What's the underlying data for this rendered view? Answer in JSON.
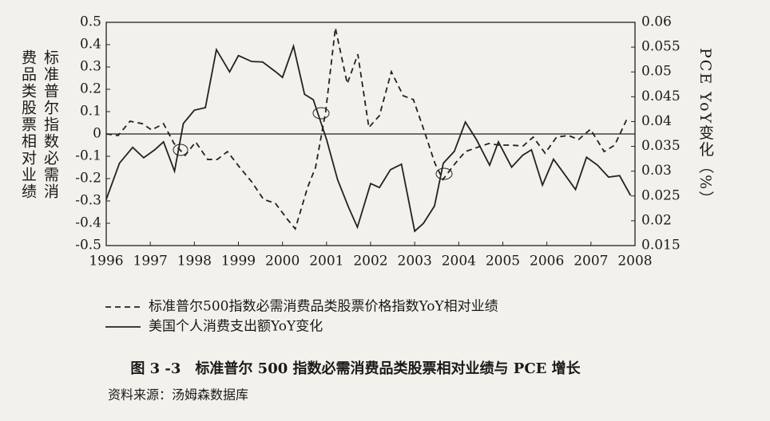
{
  "chart_data": {
    "type": "line",
    "ylabel": [
      "标准普尔指数必需消",
      "费品类股票相对业绩"
    ],
    "y2label": "PCE YoY变化（%）",
    "xlim": [
      1996,
      2008
    ],
    "xticks": [
      1996,
      1997,
      1998,
      1999,
      2000,
      2001,
      2002,
      2003,
      2004,
      2005,
      2006,
      2007,
      2008
    ],
    "ylim": [
      -0.5,
      0.5
    ],
    "yticks": [
      0.5,
      0.4,
      0.3,
      0.2,
      0.1,
      0,
      -0.1,
      -0.2,
      -0.3,
      -0.4,
      -0.5
    ],
    "y2lim": [
      0.015,
      0.06
    ],
    "y2ticks": [
      0.06,
      0.055,
      0.05,
      0.045,
      0.04,
      0.035,
      0.03,
      0.025,
      0.02,
      0.015
    ],
    "series": [
      {
        "name": "标准普尔500指数必需消费品类股票价格指数YoY相对业绩",
        "color": "#222",
        "dash": true,
        "x": [
          1996.0,
          1996.27,
          1996.54,
          1996.82,
          1997.03,
          1997.3,
          1997.54,
          1997.79,
          1998.03,
          1998.3,
          1998.52,
          1998.75,
          1999.03,
          1999.3,
          1999.57,
          1999.84,
          2000.11,
          2000.29,
          2000.57,
          2000.75,
          2000.98,
          2001.2,
          2001.47,
          2001.71,
          2001.96,
          2002.2,
          2002.47,
          2002.74,
          2002.97,
          2003.19,
          2003.46,
          2003.64,
          2003.92,
          2004.15,
          2004.41,
          2004.68,
          2004.91,
          2005.18,
          2005.46,
          2005.69,
          2005.96,
          2006.22,
          2006.49,
          2006.72,
          2006.99,
          2007.3,
          2007.54,
          2007.81
        ],
        "values": [
          0.0,
          -0.007,
          0.057,
          0.046,
          0.018,
          0.046,
          -0.043,
          -0.096,
          -0.036,
          -0.114,
          -0.114,
          -0.079,
          -0.15,
          -0.214,
          -0.293,
          -0.311,
          -0.382,
          -0.425,
          -0.239,
          -0.15,
          0.1,
          0.475,
          0.225,
          0.357,
          0.029,
          0.082,
          0.279,
          0.171,
          0.154,
          0.029,
          -0.132,
          -0.204,
          -0.132,
          -0.079,
          -0.061,
          -0.043,
          -0.05,
          -0.05,
          -0.054,
          -0.014,
          -0.086,
          -0.014,
          -0.007,
          -0.025,
          0.021,
          -0.079,
          -0.05,
          0.064
        ]
      },
      {
        "name": "美国个人消费支出额YoY变化",
        "color": "#222",
        "dash": false,
        "axis": "y2",
        "x": [
          1996.0,
          1996.3,
          1996.6,
          1996.85,
          1997.1,
          1997.3,
          1997.55,
          1997.75,
          1998.0,
          1998.25,
          1998.5,
          1998.8,
          1999.0,
          1999.3,
          1999.55,
          1999.85,
          2000.0,
          2000.25,
          2000.5,
          2000.7,
          2001.0,
          2001.25,
          2001.5,
          2001.7,
          2002.0,
          2002.2,
          2002.45,
          2002.7,
          2003.0,
          2003.2,
          2003.45,
          2003.65,
          2003.9,
          2004.15,
          2004.4,
          2004.7,
          2004.9,
          2005.2,
          2005.45,
          2005.65,
          2005.9,
          2006.15,
          2006.35,
          2006.65,
          2006.9,
          2007.15,
          2007.4,
          2007.65,
          2007.9
        ],
        "values": [
          0.0243,
          0.0316,
          0.0348,
          0.0327,
          0.0343,
          0.0359,
          0.03,
          0.0396,
          0.0423,
          0.0428,
          0.0545,
          0.05,
          0.0533,
          0.0521,
          0.052,
          0.05,
          0.0489,
          0.0552,
          0.0455,
          0.0444,
          0.0364,
          0.0283,
          0.0227,
          0.0187,
          0.0275,
          0.0267,
          0.0303,
          0.0314,
          0.0179,
          0.0195,
          0.023,
          0.0316,
          0.034,
          0.0399,
          0.0364,
          0.0312,
          0.0359,
          0.0308,
          0.0332,
          0.0343,
          0.0272,
          0.0324,
          0.03,
          0.0263,
          0.0328,
          0.0312,
          0.0288,
          0.0291,
          0.0251
        ]
      }
    ],
    "caption": "图 3 -3　标准普尔 500 指数必需消费品类股票相对业绩与 PCE 增长",
    "source": "资料来源：汤姆森数据库"
  }
}
